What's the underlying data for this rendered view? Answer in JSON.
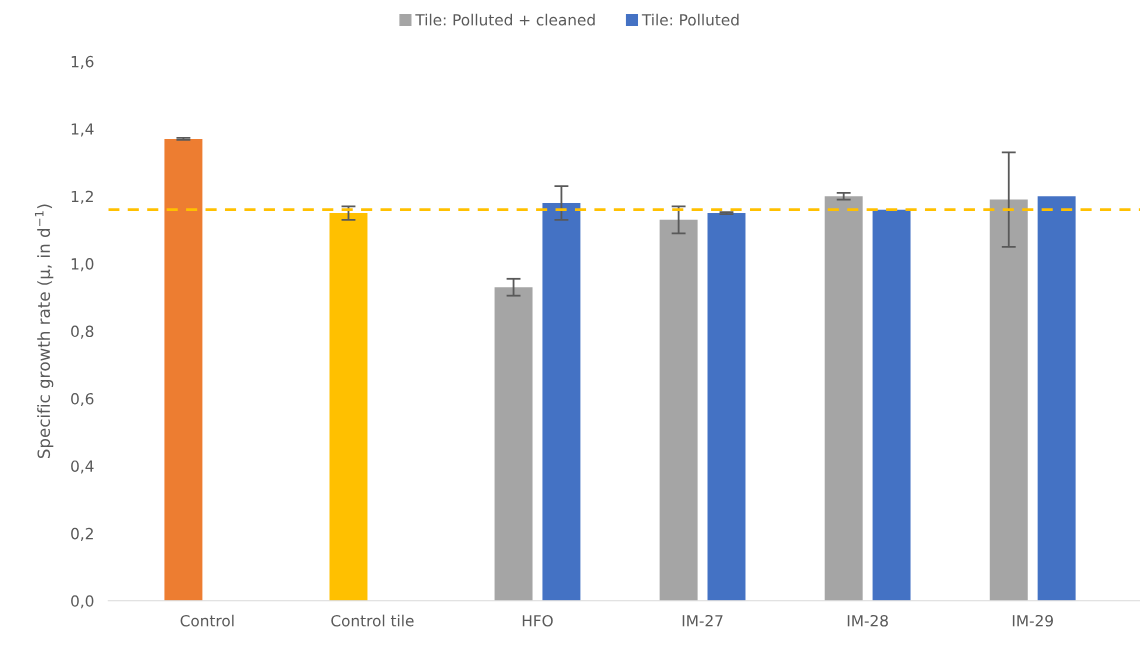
{
  "chart_data": {
    "type": "bar",
    "ylabel": "Specific growth rate (µ, in d$^{−1}$)",
    "categories": [
      "Control",
      "Control tile",
      "HFO",
      "IM-27",
      "IM-28",
      "IM-29"
    ],
    "series": [
      {
        "name": "Tile: Polluted + cleaned",
        "color": "#a5a5a5",
        "colors": [
          "#ed7d31",
          "#ffc000",
          "#a5a5a5",
          "#a5a5a5",
          "#a5a5a5",
          "#a5a5a5"
        ],
        "values": [
          1.37,
          1.15,
          0.93,
          1.13,
          1.2,
          1.19
        ],
        "errors": [
          0.003,
          0.02,
          0.025,
          0.04,
          0.01,
          0.14
        ]
      },
      {
        "name": "Tile: Polluted",
        "color": "#4472c4",
        "values": [
          null,
          null,
          1.18,
          1.15,
          1.16,
          1.2
        ],
        "errors": [
          null,
          null,
          0.05,
          0.003,
          null,
          null
        ]
      }
    ],
    "ylim": [
      0,
      1.6
    ],
    "yticks": [
      {
        "value": 0,
        "label": "0,0"
      },
      {
        "value": 0.2,
        "label": "0,2"
      },
      {
        "value": 0.4,
        "label": "0,4"
      },
      {
        "value": 0.6,
        "label": "0,6"
      },
      {
        "value": 0.8,
        "label": "0,8"
      },
      {
        "value": 1.0,
        "label": "1,0"
      },
      {
        "value": 1.2,
        "label": "1,2"
      },
      {
        "value": 1.4,
        "label": "1,4"
      },
      {
        "value": 1.6,
        "label": "1,6"
      }
    ],
    "ref_lines": [
      {
        "axis": "y",
        "value": 1.16,
        "color": "#ffc000",
        "line_style": "dashed"
      }
    ],
    "grid": false,
    "legend": "top"
  }
}
